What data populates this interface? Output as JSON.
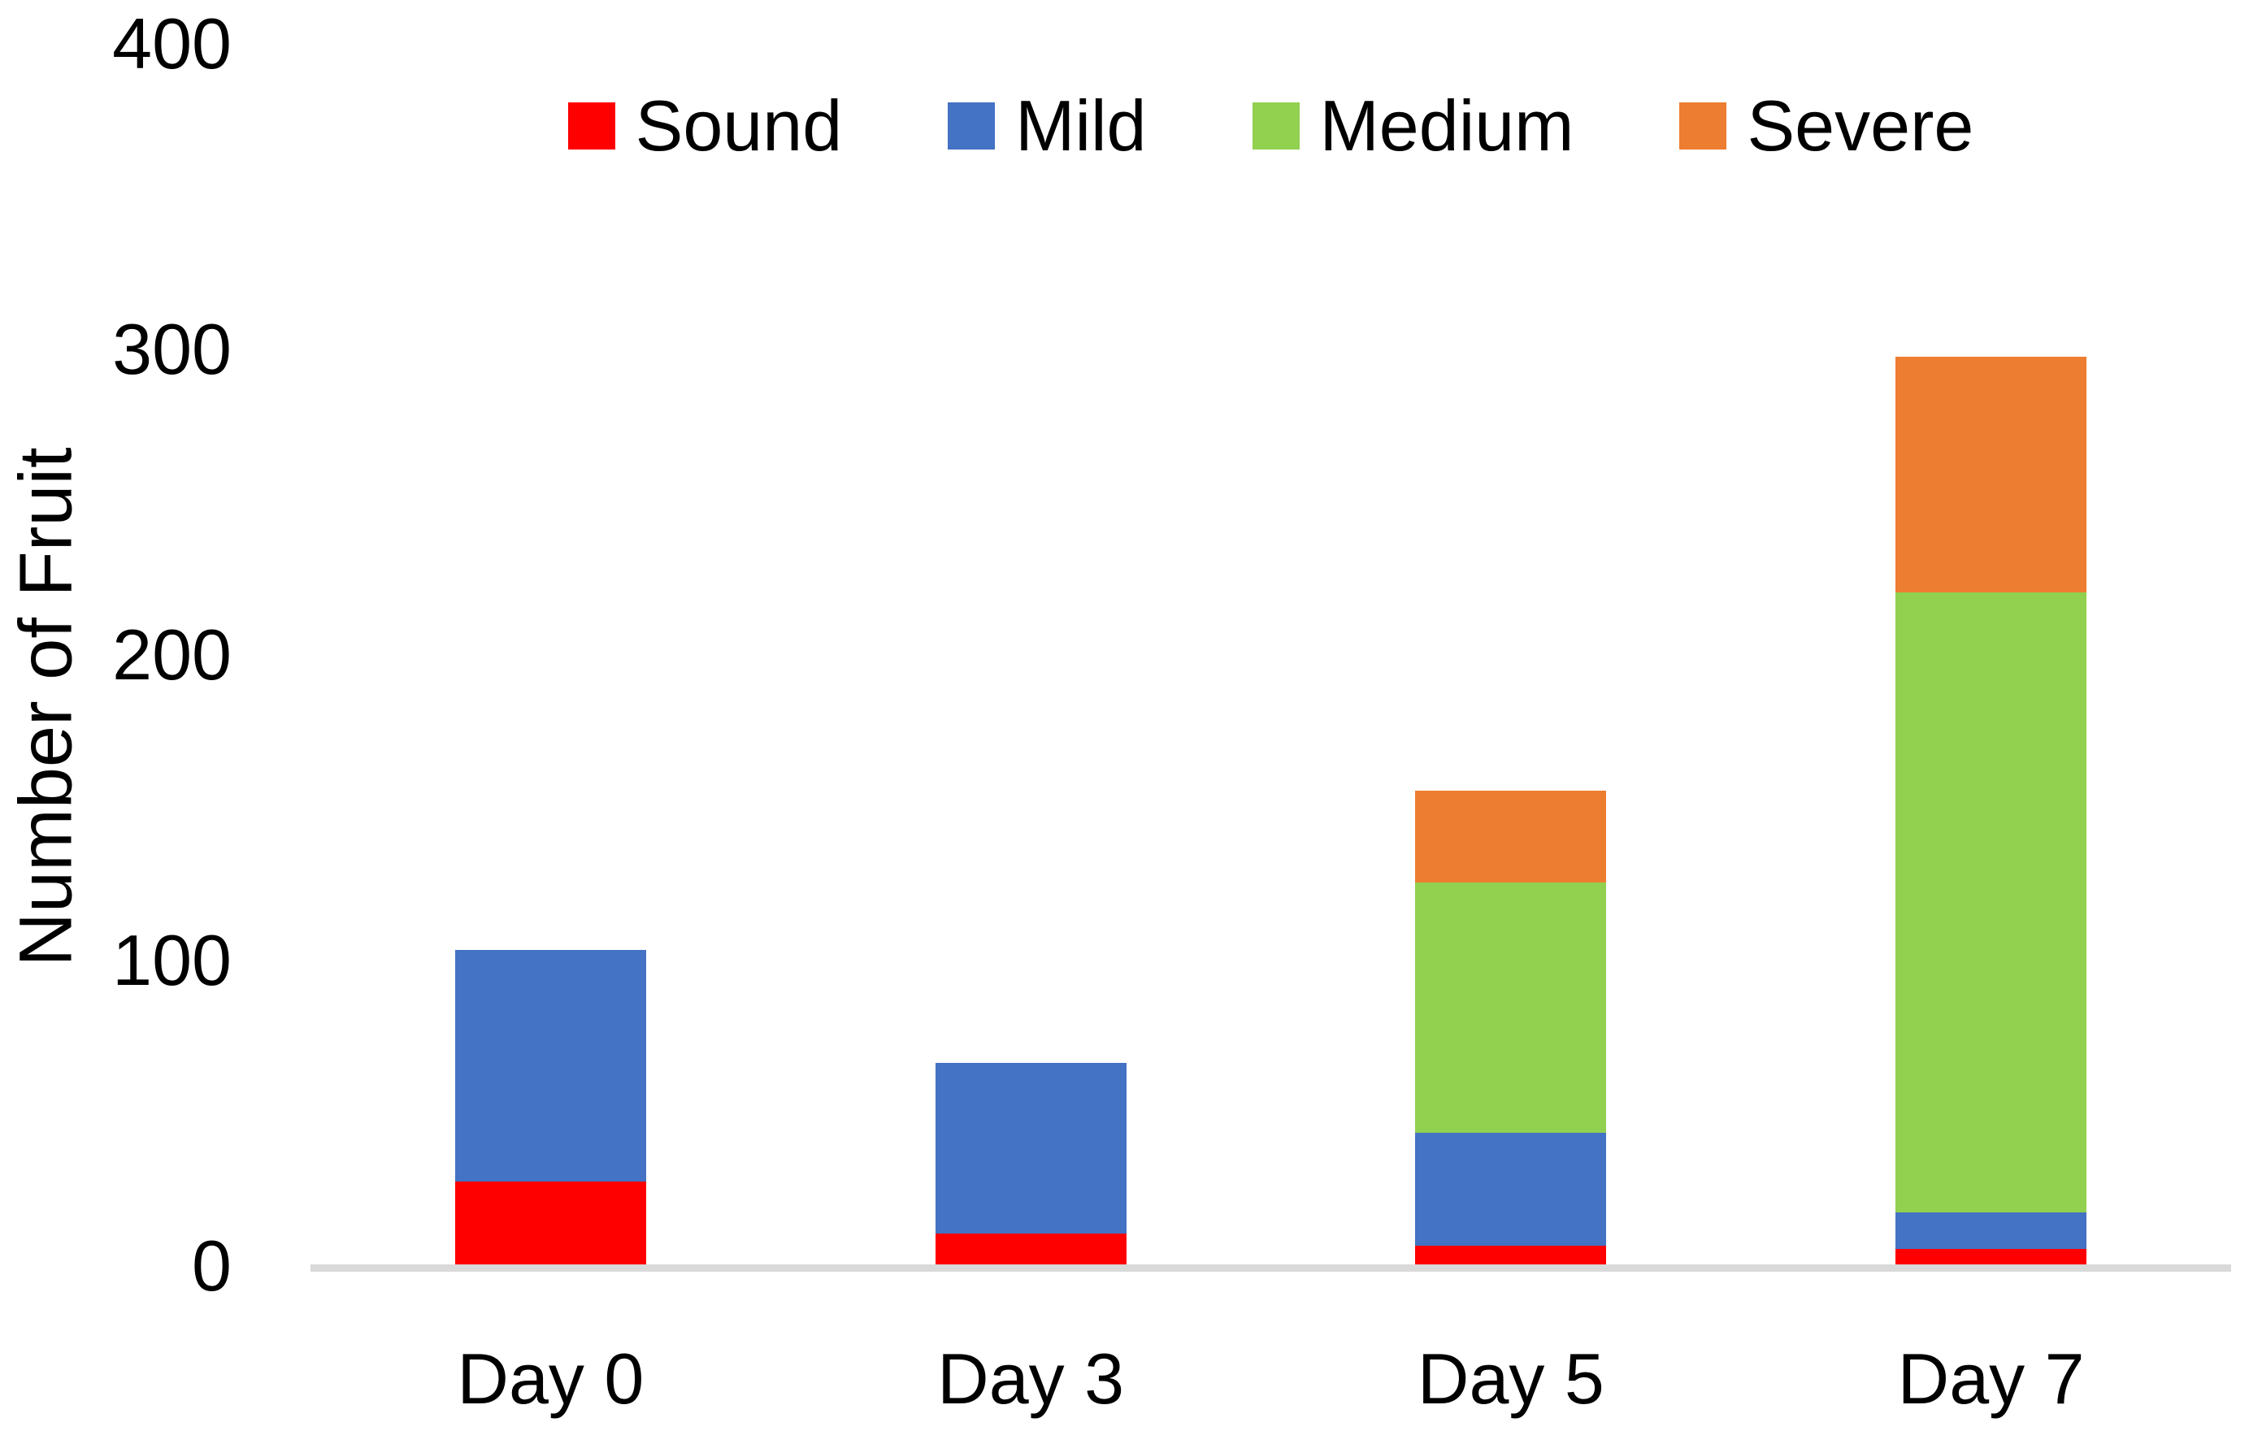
{
  "chart_data": {
    "type": "bar",
    "stacked": true,
    "title": "",
    "ylabel": "Number of Fruit",
    "xlabel": "",
    "categories": [
      "Day 0",
      "Day 3",
      "Day 5",
      "Day 7"
    ],
    "series": [
      {
        "name": "Sound",
        "color": "#FF0000",
        "values": [
          27,
          10,
          6,
          5
        ]
      },
      {
        "name": "Mild",
        "color": "#4472C4",
        "values": [
          76,
          56,
          37,
          12
        ]
      },
      {
        "name": "Medium",
        "color": "#92D050",
        "values": [
          0,
          0,
          82,
          203
        ]
      },
      {
        "name": "Severe",
        "color": "#ED7D31",
        "values": [
          0,
          0,
          30,
          77
        ]
      }
    ],
    "stack_totals": [
      103,
      66,
      155,
      297
    ],
    "ylim": [
      0,
      400
    ],
    "yticks": [
      0,
      100,
      200,
      300,
      400
    ],
    "grid": false,
    "legend_position": "top",
    "axis_line_color": "#D9D9D9",
    "text_color": "#000000",
    "background_color": "#FFFFFF"
  }
}
